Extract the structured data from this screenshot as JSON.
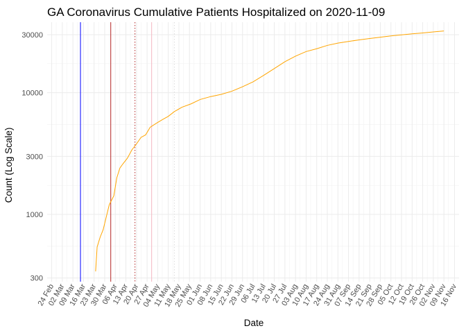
{
  "chart_data": {
    "type": "line",
    "title": "GA Coronavirus Cumulative Patients Hospitalized on 2020-11-09",
    "xlabel": "Date",
    "ylabel": "Count (Log Scale)",
    "y_scale": "log10",
    "ylim": [
      280,
      38000
    ],
    "xlim": [
      "2020-02-21",
      "2020-11-19"
    ],
    "grid": true,
    "legend": "none",
    "y_ticks": [
      {
        "value": 300,
        "label": "300"
      },
      {
        "value": 1000,
        "label": "1000"
      },
      {
        "value": 3000,
        "label": "3000"
      },
      {
        "value": 10000,
        "label": "10000"
      },
      {
        "value": 30000,
        "label": "30000"
      }
    ],
    "x_ticks": [
      {
        "date": "2020-02-24",
        "label": "24 Feb"
      },
      {
        "date": "2020-03-02",
        "label": "02 Mar"
      },
      {
        "date": "2020-03-09",
        "label": "09 Mar"
      },
      {
        "date": "2020-03-16",
        "label": "16 Mar"
      },
      {
        "date": "2020-03-23",
        "label": "23 Mar"
      },
      {
        "date": "2020-03-30",
        "label": "30 Mar"
      },
      {
        "date": "2020-04-06",
        "label": "06 Apr"
      },
      {
        "date": "2020-04-13",
        "label": "13 Apr"
      },
      {
        "date": "2020-04-20",
        "label": "20 Apr"
      },
      {
        "date": "2020-04-27",
        "label": "27 Apr"
      },
      {
        "date": "2020-05-04",
        "label": "04 May"
      },
      {
        "date": "2020-05-11",
        "label": "11 May"
      },
      {
        "date": "2020-05-18",
        "label": "18 May"
      },
      {
        "date": "2020-05-25",
        "label": "25 May"
      },
      {
        "date": "2020-06-01",
        "label": "01 Jun"
      },
      {
        "date": "2020-06-08",
        "label": "08 Jun"
      },
      {
        "date": "2020-06-15",
        "label": "15 Jun"
      },
      {
        "date": "2020-06-22",
        "label": "22 Jun"
      },
      {
        "date": "2020-06-29",
        "label": "29 Jun"
      },
      {
        "date": "2020-07-06",
        "label": "06 Jul"
      },
      {
        "date": "2020-07-13",
        "label": "13 Jul"
      },
      {
        "date": "2020-07-20",
        "label": "20 Jul"
      },
      {
        "date": "2020-07-27",
        "label": "27 Jul"
      },
      {
        "date": "2020-08-03",
        "label": "03 Aug"
      },
      {
        "date": "2020-08-10",
        "label": "10 Aug"
      },
      {
        "date": "2020-08-17",
        "label": "17 Aug"
      },
      {
        "date": "2020-08-24",
        "label": "24 Aug"
      },
      {
        "date": "2020-08-31",
        "label": "31 Aug"
      },
      {
        "date": "2020-09-07",
        "label": "07 Sep"
      },
      {
        "date": "2020-09-14",
        "label": "14 Sep"
      },
      {
        "date": "2020-09-21",
        "label": "21 Sep"
      },
      {
        "date": "2020-09-28",
        "label": "28 Sep"
      },
      {
        "date": "2020-10-05",
        "label": "05 Oct"
      },
      {
        "date": "2020-10-12",
        "label": "12 Oct"
      },
      {
        "date": "2020-10-19",
        "label": "19 Oct"
      },
      {
        "date": "2020-10-26",
        "label": "26 Oct"
      },
      {
        "date": "2020-11-02",
        "label": "02 Nov"
      },
      {
        "date": "2020-11-09",
        "label": "09 Nov"
      },
      {
        "date": "2020-11-16",
        "label": "16 Nov"
      }
    ],
    "reference_lines": [
      {
        "date": "2020-03-14",
        "color": "#0000ff",
        "style": "solid"
      },
      {
        "date": "2020-04-03",
        "color": "#b22222",
        "style": "solid"
      },
      {
        "date": "2020-04-19",
        "color": "#b22222",
        "style": "dotted"
      },
      {
        "date": "2020-04-30",
        "color": "#f4b6c2",
        "style": "solid"
      },
      {
        "date": "2020-05-15",
        "color": "#dcdcdc",
        "style": "dotted"
      }
    ],
    "series": [
      {
        "color": "#ffa500",
        "points": [
          [
            "2020-03-24",
            340
          ],
          [
            "2020-03-25",
            540
          ],
          [
            "2020-03-27",
            650
          ],
          [
            "2020-03-29",
            750
          ],
          [
            "2020-03-31",
            950
          ],
          [
            "2020-04-02",
            1200
          ],
          [
            "2020-04-05",
            1420
          ],
          [
            "2020-04-07",
            2000
          ],
          [
            "2020-04-09",
            2400
          ],
          [
            "2020-04-11",
            2600
          ],
          [
            "2020-04-14",
            2900
          ],
          [
            "2020-04-17",
            3400
          ],
          [
            "2020-04-20",
            3800
          ],
          [
            "2020-04-23",
            4300
          ],
          [
            "2020-04-26",
            4500
          ],
          [
            "2020-04-29",
            5200
          ],
          [
            "2020-05-03",
            5600
          ],
          [
            "2020-05-07",
            6000
          ],
          [
            "2020-05-11",
            6400
          ],
          [
            "2020-05-15",
            7000
          ],
          [
            "2020-05-20",
            7600
          ],
          [
            "2020-05-26",
            8100
          ],
          [
            "2020-06-01",
            8800
          ],
          [
            "2020-06-08",
            9300
          ],
          [
            "2020-06-15",
            9700
          ],
          [
            "2020-06-22",
            10300
          ],
          [
            "2020-06-29",
            11200
          ],
          [
            "2020-07-06",
            12300
          ],
          [
            "2020-07-13",
            13900
          ],
          [
            "2020-07-20",
            15800
          ],
          [
            "2020-07-27",
            18000
          ],
          [
            "2020-08-03",
            20000
          ],
          [
            "2020-08-10",
            21800
          ],
          [
            "2020-08-17",
            23000
          ],
          [
            "2020-08-24",
            24500
          ],
          [
            "2020-08-31",
            25600
          ],
          [
            "2020-09-07",
            26400
          ],
          [
            "2020-09-14",
            27200
          ],
          [
            "2020-09-21",
            27900
          ],
          [
            "2020-09-28",
            28600
          ],
          [
            "2020-10-05",
            29300
          ],
          [
            "2020-10-12",
            29900
          ],
          [
            "2020-10-19",
            30500
          ],
          [
            "2020-10-26",
            31000
          ],
          [
            "2020-11-02",
            31600
          ],
          [
            "2020-11-09",
            32200
          ]
        ]
      }
    ]
  }
}
